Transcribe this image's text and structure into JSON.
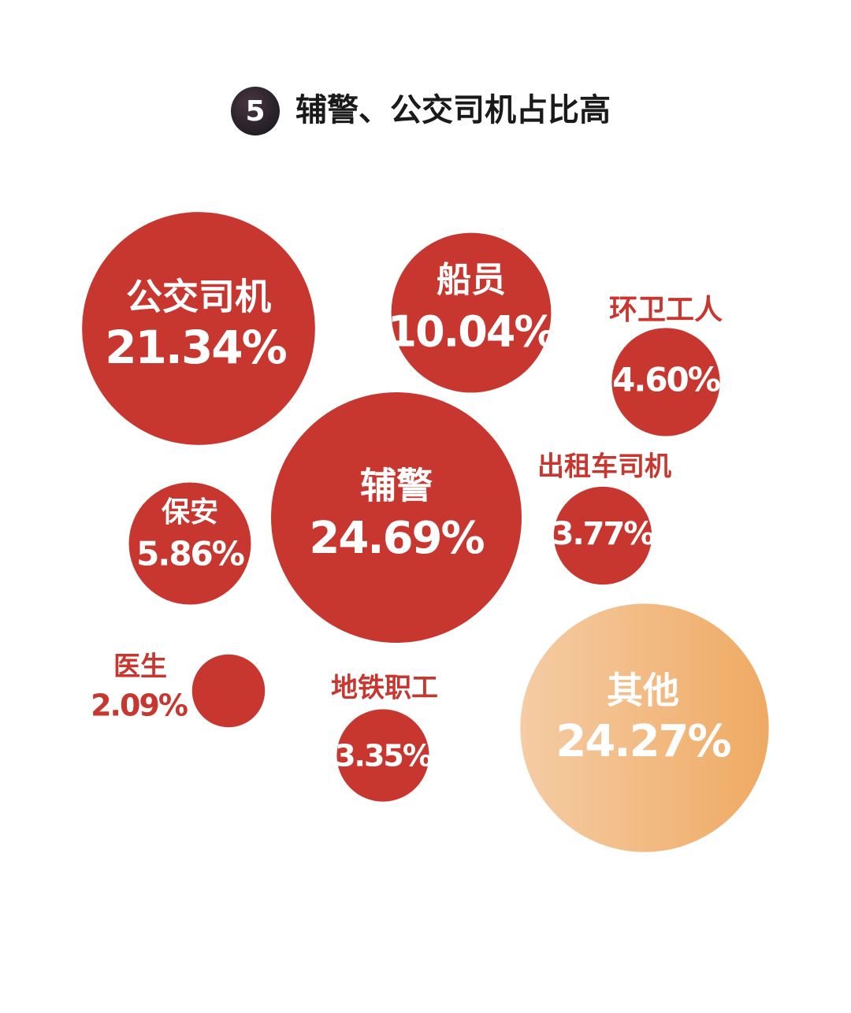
{
  "chart_data": {
    "type": "bubble",
    "title_number": "5",
    "title": "辅警、公交司机占比高",
    "categories": [
      "公交司机",
      "船员",
      "环卫工人",
      "辅警",
      "出租车司机",
      "保安",
      "医生",
      "地铁职工",
      "其他"
    ],
    "values": [
      21.34,
      10.04,
      4.6,
      24.69,
      3.77,
      5.86,
      2.09,
      3.35,
      24.27
    ],
    "value_labels": [
      "21.34%",
      "10.04%",
      "4.60%",
      "24.69%",
      "3.77%",
      "5.86%",
      "2.09%",
      "3.35%",
      "24.27%"
    ],
    "colors": [
      "#c8372f",
      "#c8372f",
      "#c8372f",
      "#c8372f",
      "#c8372f",
      "#c8372f",
      "#c8372f",
      "#c8372f",
      [
        "#f5cca4",
        "#efaa63"
      ]
    ]
  }
}
